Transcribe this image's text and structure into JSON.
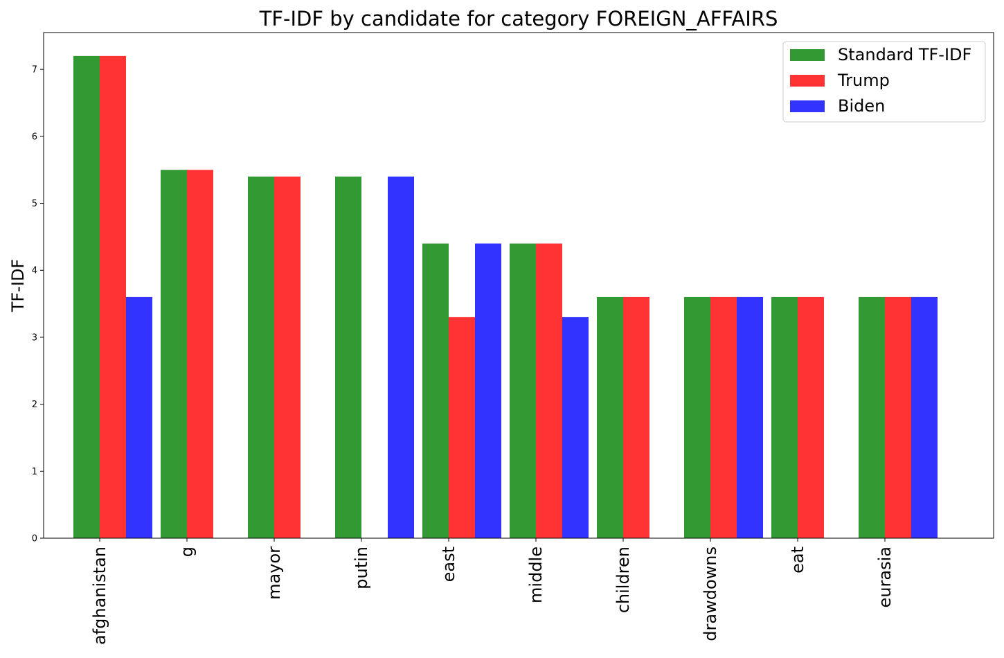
{
  "chart_data": {
    "type": "bar",
    "title": "TF-IDF by candidate for category FOREIGN_AFFAIRS",
    "xlabel": "",
    "ylabel": "TF-IDF",
    "ylim": [
      0,
      7.55
    ],
    "yticks": [
      0,
      1,
      2,
      3,
      4,
      5,
      6,
      7
    ],
    "categories": [
      "afghanistan",
      "g",
      "mayor",
      "putin",
      "east",
      "middle",
      "children",
      "drawdowns",
      "eat",
      "eurasia"
    ],
    "series": [
      {
        "name": "Standard TF-IDF",
        "color": "#339933",
        "values": [
          7.2,
          5.5,
          5.4,
          5.4,
          4.4,
          4.4,
          3.6,
          3.6,
          3.6,
          3.6
        ]
      },
      {
        "name": "Trump",
        "color": "#ff3333",
        "values": [
          7.2,
          5.5,
          5.4,
          0,
          3.3,
          4.4,
          3.6,
          3.6,
          3.6,
          3.6
        ]
      },
      {
        "name": "Biden",
        "color": "#3333ff",
        "values": [
          3.6,
          0,
          0,
          5.4,
          4.4,
          3.3,
          0,
          3.6,
          0,
          3.6
        ]
      }
    ],
    "legend_position": "top-right",
    "grid": false
  }
}
